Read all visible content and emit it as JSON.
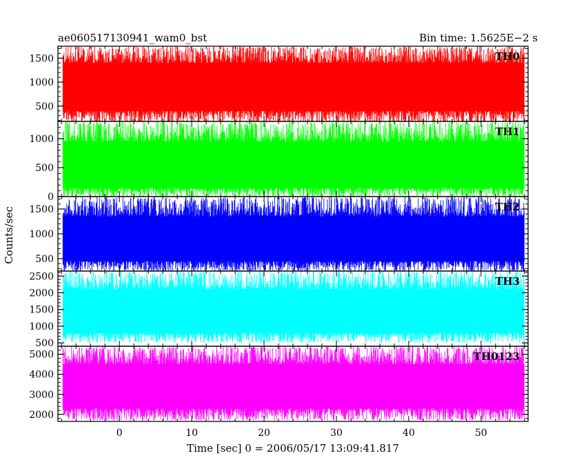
{
  "header": {
    "left": "ae060517130941_wam0_bst",
    "right": "Bin time: 1.5625E−2 s"
  },
  "ylabel": "Counts/sec",
  "xlabel": "Time [sec] 0 = 2006/05/17 13:09:41.817",
  "chart_data": {
    "type": "line",
    "x_range": [
      -8.5,
      56.5
    ],
    "x_data_range": [
      -7.8,
      56.0
    ],
    "x_ticks_major": [
      0,
      10,
      20,
      30,
      40,
      50
    ],
    "x_ticks_major_labels": [
      "0",
      "10",
      "20",
      "30",
      "40",
      "50"
    ],
    "x_tick_minor_step": 2,
    "panels": [
      {
        "name": "TH0",
        "color": "#ff0000",
        "ylim": [
          180,
          1750
        ],
        "yticks": [
          500,
          1000,
          1500
        ],
        "ytick_labels": [
          "500",
          "1000",
          "1500"
        ],
        "minor_step": 100,
        "typical_band": [
          400,
          1400
        ],
        "peak_range": [
          150,
          1750
        ]
      },
      {
        "name": "TH1",
        "color": "#00ff00",
        "ylim": [
          0,
          1300
        ],
        "yticks": [
          0,
          500,
          1000
        ],
        "ytick_labels": [
          "0",
          "500",
          "1000"
        ],
        "minor_step": 100,
        "typical_band": [
          150,
          950
        ],
        "peak_range": [
          0,
          1300
        ]
      },
      {
        "name": "TH2",
        "color": "#0000ff",
        "ylim": [
          250,
          1750
        ],
        "yticks": [
          500,
          1000,
          1500
        ],
        "ytick_labels": [
          "500",
          "1000",
          "1500"
        ],
        "minor_step": 100,
        "typical_band": [
          450,
          1350
        ],
        "peak_range": [
          250,
          1750
        ]
      },
      {
        "name": "TH3",
        "color": "#00ffff",
        "ylim": [
          400,
          2650
        ],
        "yticks": [
          500,
          1000,
          1500,
          2000,
          2500
        ],
        "ytick_labels": [
          "500",
          "1000",
          "1500",
          "2000",
          "2500"
        ],
        "minor_step": 100,
        "typical_band": [
          800,
          2100
        ],
        "peak_range": [
          500,
          2650
        ]
      },
      {
        "name": "TH0123",
        "color": "#ff00ff",
        "ylim": [
          1650,
          5400
        ],
        "yticks": [
          2000,
          3000,
          4000,
          5000
        ],
        "ytick_labels": [
          "2000",
          "3000",
          "4000",
          "5000"
        ],
        "minor_step": 200,
        "typical_band": [
          2300,
          4500
        ],
        "peak_range": [
          1700,
          5400
        ]
      }
    ]
  }
}
